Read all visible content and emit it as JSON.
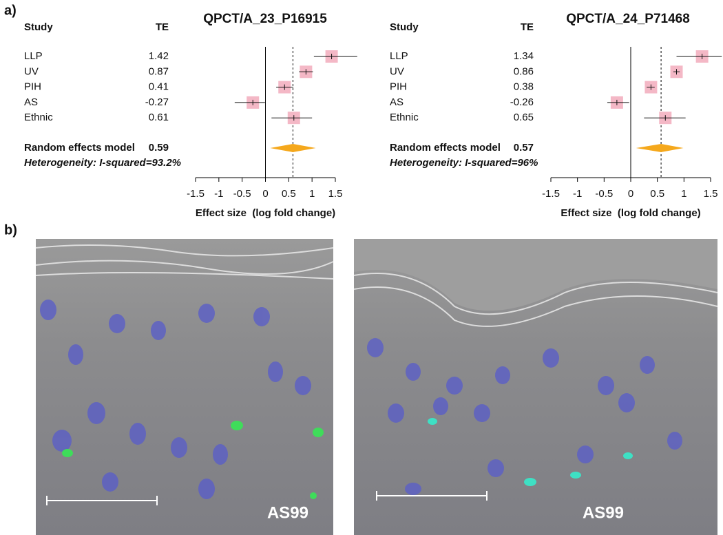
{
  "panel_labels": [
    "a)",
    "b)"
  ],
  "chart_data": [
    {
      "type": "forest",
      "title": "QPCT/A_23_P16915",
      "column_headers": [
        "Study",
        "TE"
      ],
      "categories": [
        "LLP",
        "UV",
        "PIH",
        "AS",
        "Ethnic"
      ],
      "values": [
        1.42,
        0.87,
        0.41,
        -0.27,
        0.61
      ],
      "ci_low": [
        1.04,
        0.72,
        0.23,
        -0.66,
        0.13
      ],
      "ci_high": [
        1.97,
        1.02,
        0.6,
        -0.01,
        1.0
      ],
      "summary_label": "Random effects model",
      "summary_value": 0.59,
      "summary_ci_low": 0.1,
      "summary_ci_high": 1.08,
      "heterogeneity": "Heterogeneity: I-squared=93.2%",
      "xlabel": "Effect size  (log fold change)",
      "xlim": [
        -1.5,
        1.5
      ],
      "xticks": [
        -1.5,
        -1,
        -0.5,
        0,
        0.5,
        1,
        1.5
      ],
      "box_color": "#f4b8c6",
      "diamond_color": "#f5a81c"
    },
    {
      "type": "forest",
      "title": "QPCT/A_24_P71468",
      "column_headers": [
        "Study",
        "TE"
      ],
      "categories": [
        "LLP",
        "UV",
        "PIH",
        "AS",
        "Ethnic"
      ],
      "values": [
        1.34,
        0.86,
        0.38,
        -0.26,
        0.65
      ],
      "ci_low": [
        0.86,
        0.8,
        0.3,
        -0.44,
        0.25
      ],
      "ci_high": [
        1.71,
        0.92,
        0.45,
        -0.03,
        1.03
      ],
      "summary_label": "Random effects model",
      "summary_value": 0.57,
      "summary_ci_low": 0.1,
      "summary_ci_high": 0.99,
      "heterogeneity": "Heterogeneity: I-squared=96%",
      "xlabel": "Effect size  (log fold change)",
      "xlim": [
        -1.5,
        1.5
      ],
      "xticks": [
        -1.5,
        -1,
        -0.5,
        0,
        0.5,
        1,
        1.5
      ],
      "box_color": "#f4b8c6",
      "diamond_color": "#f5a81c"
    }
  ],
  "images": [
    {
      "label": "AS99"
    },
    {
      "label": "AS99"
    }
  ]
}
